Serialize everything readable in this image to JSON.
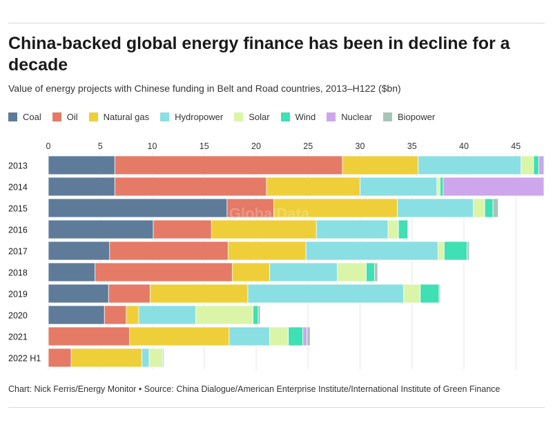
{
  "title": "China-backed global energy finance has been in decline for a decade",
  "subtitle": "Value of energy projects with Chinese funding in Belt and Road countries, 2013–H122 ($bn)",
  "footer": "Chart: Nick Ferris/Energy Monitor • Source: China Dialogue/American Enterprise Institute/International Institute of Green Finance",
  "watermark": "GlobalData",
  "chart_data": {
    "type": "bar",
    "orientation": "horizontal",
    "stacked": true,
    "title": "China-backed global energy finance has been in decline for a decade",
    "xlabel": "",
    "ylabel": "",
    "xlim": [
      0,
      47.5
    ],
    "xticks": [
      0,
      5,
      10,
      15,
      20,
      25,
      30,
      35,
      40,
      45
    ],
    "categories": [
      "2013",
      "2014",
      "2015",
      "2016",
      "2017",
      "2018",
      "2019",
      "2020",
      "2021",
      "2022 H1"
    ],
    "series": [
      {
        "name": "Coal",
        "color": "#5e7b99",
        "values": [
          6.4,
          6.4,
          17.2,
          10.1,
          5.9,
          4.5,
          5.8,
          5.4,
          0,
          0
        ]
      },
      {
        "name": "Oil",
        "color": "#e57a66",
        "values": [
          21.9,
          14.6,
          4.5,
          5.6,
          11.4,
          13.2,
          4.0,
          2.1,
          7.8,
          2.2
        ]
      },
      {
        "name": "Natural gas",
        "color": "#eecf3a",
        "values": [
          7.3,
          9.0,
          11.9,
          10.1,
          7.5,
          3.6,
          9.4,
          1.2,
          9.6,
          6.8
        ]
      },
      {
        "name": "Hydropower",
        "color": "#8adfe3",
        "values": [
          9.9,
          7.4,
          7.3,
          6.9,
          12.7,
          6.5,
          15.0,
          5.5,
          3.9,
          0.7
        ]
      },
      {
        "name": "Solar",
        "color": "#daf5a8",
        "values": [
          1.2,
          0.3,
          1.1,
          1.0,
          0.6,
          2.8,
          1.6,
          5.5,
          1.8,
          1.3
        ]
      },
      {
        "name": "Wind",
        "color": "#3fe0b3",
        "values": [
          0.5,
          0.3,
          0.8,
          0.9,
          2.2,
          0.8,
          1.8,
          0.5,
          1.4,
          0.1
        ]
      },
      {
        "name": "Nuclear",
        "color": "#cda6eb",
        "values": [
          0.5,
          9.7,
          0,
          0,
          0,
          0,
          0,
          0,
          0.4,
          0
        ]
      },
      {
        "name": "Biopower",
        "color": "#a8c4b8",
        "values": [
          0,
          0,
          0.5,
          0,
          0.2,
          0.3,
          0.1,
          0.2,
          0.3,
          0
        ]
      }
    ]
  }
}
